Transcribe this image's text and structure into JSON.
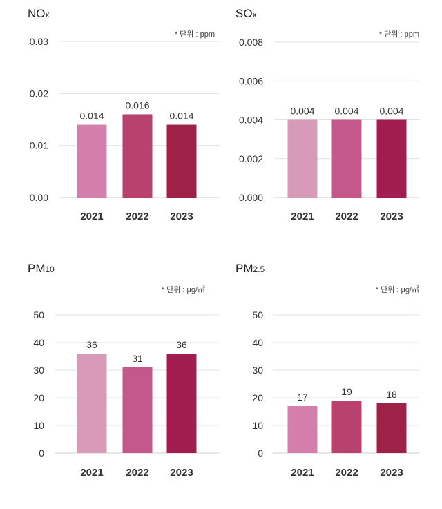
{
  "chart_data": [
    {
      "type": "bar",
      "title_main": "NO",
      "title_sub": "x",
      "unit": "* 단위 : ppm",
      "categories": [
        "2021",
        "2022",
        "2023"
      ],
      "values": [
        0.014,
        0.016,
        0.014
      ],
      "value_labels": [
        "0.014",
        "0.016",
        "0.014"
      ],
      "yticks": [
        "0.00",
        "0.01",
        "0.02",
        "0.03"
      ],
      "ylim": [
        0,
        0.03
      ],
      "colors": [
        "#d47fab",
        "#b8426d",
        "#9e2148"
      ]
    },
    {
      "type": "bar",
      "title_main": "SO",
      "title_sub": "x",
      "unit": "* 단위 : ppm",
      "categories": [
        "2021",
        "2022",
        "2023"
      ],
      "values": [
        0.004,
        0.004,
        0.004
      ],
      "value_labels": [
        "0.004",
        "0.004",
        "0.004"
      ],
      "yticks": [
        "0.000",
        "0.002",
        "0.004",
        "0.006",
        "0.008"
      ],
      "ylim": [
        0,
        0.008
      ],
      "colors": [
        "#d89ab9",
        "#c5588a",
        "#a11d4f"
      ]
    },
    {
      "type": "bar",
      "title_main": "PM",
      "title_sub": "10",
      "unit": "* 단위 : μg/㎥",
      "categories": [
        "2021",
        "2022",
        "2023"
      ],
      "values": [
        36,
        31,
        36
      ],
      "value_labels": [
        "36",
        "31",
        "36"
      ],
      "yticks": [
        "0",
        "10",
        "20",
        "30",
        "40",
        "50"
      ],
      "ylim": [
        0,
        50
      ],
      "colors": [
        "#d89ab9",
        "#c5588a",
        "#a11d4f"
      ]
    },
    {
      "type": "bar",
      "title_main": "PM",
      "title_sub": "2.5",
      "unit": "* 단위 : μg/㎥",
      "categories": [
        "2021",
        "2022",
        "2023"
      ],
      "values": [
        17,
        19,
        18
      ],
      "value_labels": [
        "17",
        "19",
        "18"
      ],
      "yticks": [
        "0",
        "10",
        "20",
        "30",
        "40",
        "50"
      ],
      "ylim": [
        0,
        50
      ],
      "colors": [
        "#d47fab",
        "#b8426d",
        "#9e2148"
      ]
    }
  ]
}
